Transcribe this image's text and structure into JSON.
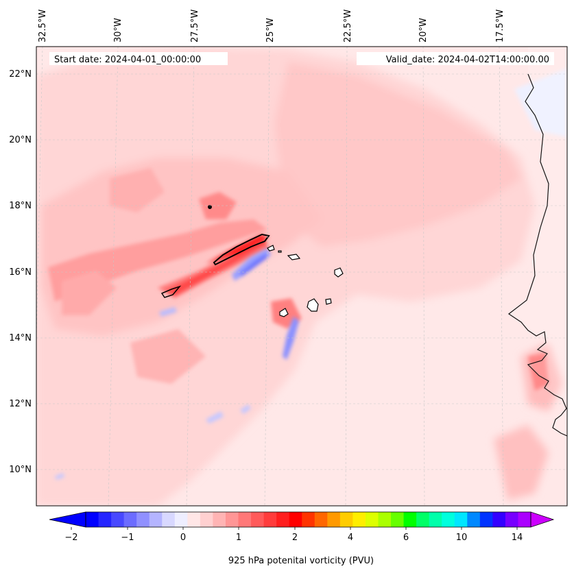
{
  "map": {
    "start_date": "Start date: 2024-04-01_00:00:00",
    "valid_date": "Valid_date: 2024-04-02T14:00:00.00",
    "lon_labels": [
      "32.5°W",
      "30°W",
      "27.5°W",
      "25°W",
      "22.5°W",
      "20°W",
      "17.5°W"
    ],
    "lat_labels": [
      "22°N",
      "20°N",
      "18°N",
      "16°N",
      "14°N",
      "12°N",
      "10°N"
    ],
    "features": [
      "potential vorticity field over the eastern Atlantic",
      "Cape Verde islands",
      "West African coastline"
    ]
  },
  "colorbar": {
    "label": "925 hPa potenital vorticity (PVU)",
    "tick_labels": [
      "−2",
      "−1",
      "0",
      "1",
      "2",
      "4",
      "6",
      "10",
      "14"
    ],
    "colors": [
      "#0000ff",
      "#2424ff",
      "#4848ff",
      "#6c6cff",
      "#9090ff",
      "#b4b4ff",
      "#d8d8ff",
      "#eeeeff",
      "#ffe6e6",
      "#ffd0d0",
      "#ffb4b4",
      "#ff9696",
      "#ff7878",
      "#ff5a5a",
      "#ff3c3c",
      "#ff1e1e",
      "#ff0000",
      "#ff3300",
      "#ff6600",
      "#ff9900",
      "#ffcc00",
      "#ffee00",
      "#ddff00",
      "#aaff00",
      "#66ff00",
      "#00ff00",
      "#00ff66",
      "#00ffaa",
      "#00ffdd",
      "#00e6ff",
      "#0088ff",
      "#0033ff",
      "#3300ff",
      "#7700ff",
      "#aa00ff"
    ],
    "under_color": "#0000ff",
    "over_color": "#cc00ff"
  }
}
